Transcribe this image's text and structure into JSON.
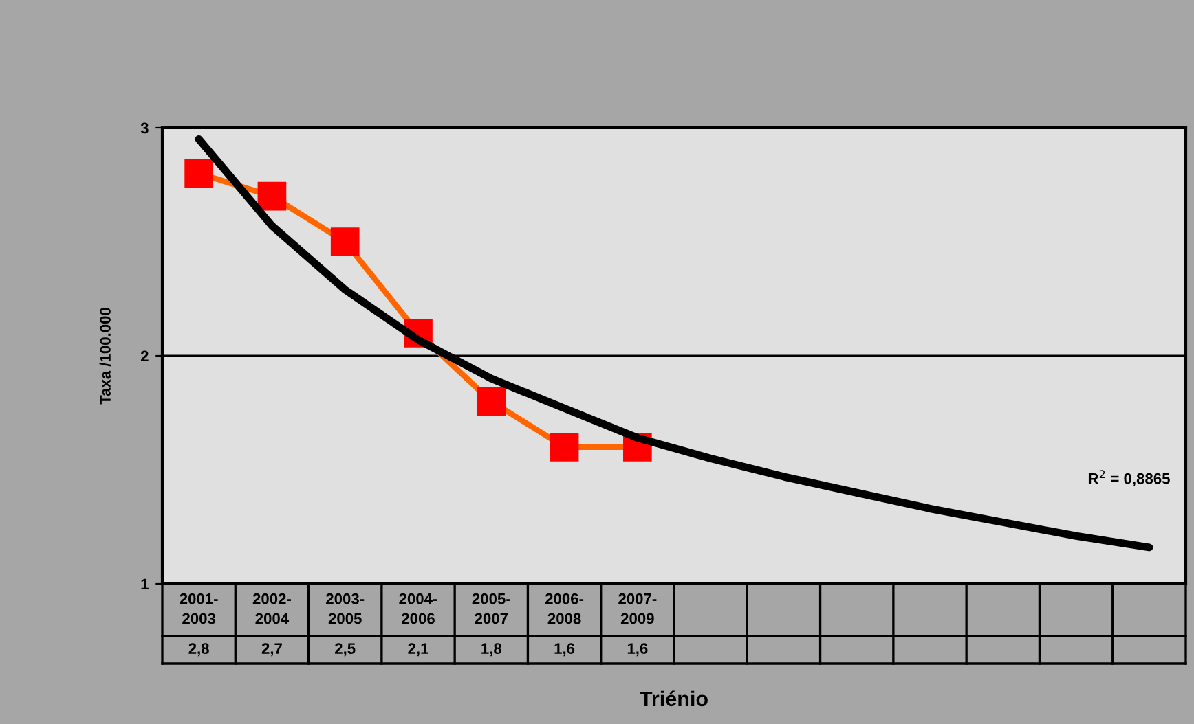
{
  "chart_data": {
    "type": "line",
    "categories": [
      "2001-\n2003",
      "2002-\n2004",
      "2003-\n2005",
      "2004-\n2006",
      "2005-\n2007",
      "2006-\n2008",
      "2007-\n2009",
      null,
      null,
      null,
      null,
      null,
      null,
      null
    ],
    "series": [
      {
        "color": "#ff6600",
        "marker": "square",
        "values": [
          2.8,
          2.7,
          2.5,
          2.1,
          1.8,
          1.6,
          1.6,
          null,
          null,
          null,
          null,
          null,
          null,
          null
        ],
        "value_labels": [
          "2,8",
          "2,7",
          "2,5",
          "2,1",
          "1,8",
          "1,6",
          "1,6",
          null,
          null,
          null,
          null,
          null,
          null,
          null
        ]
      },
      {
        "color": "#000000",
        "marker": "none",
        "values": [
          2.95,
          2.57,
          2.29,
          2.07,
          1.9,
          1.77,
          1.64,
          1.55,
          1.47,
          1.4,
          1.33,
          1.27,
          1.21,
          1.16
        ]
      }
    ],
    "ylim": [
      1,
      3
    ],
    "yticks": [
      1,
      2,
      3
    ],
    "grid": "y",
    "legend": false,
    "ylabel": "Taxa /100.000",
    "xlabel": "Triénio",
    "annotations": [
      "R$^{2}$ = 0,8865"
    ]
  }
}
